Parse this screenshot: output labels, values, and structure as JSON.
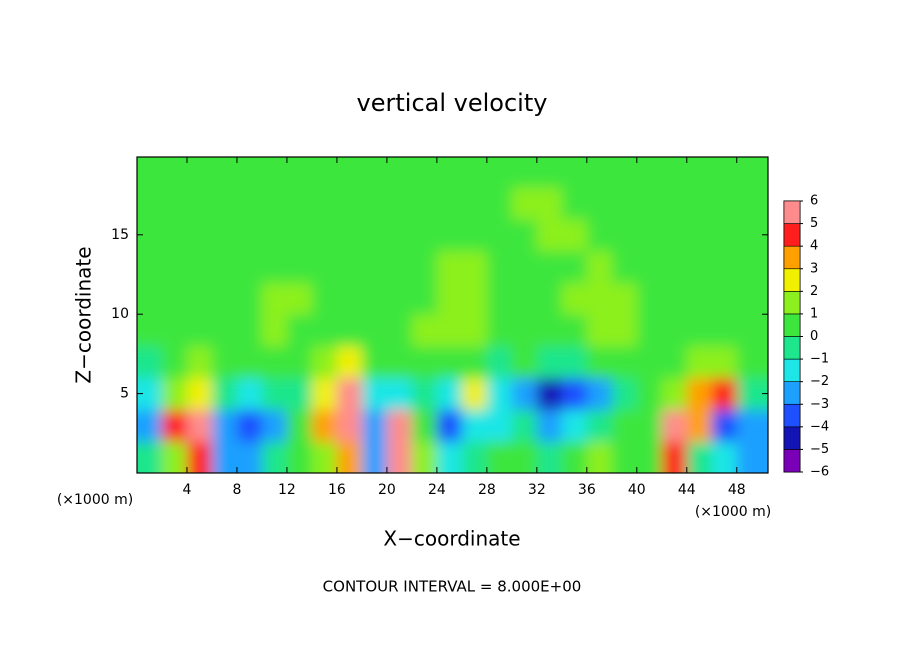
{
  "chart_data": {
    "type": "heatmap",
    "title": "vertical velocity",
    "x_label": "X−coordinate",
    "y_label": "Z−coordinate",
    "x_unit_left": "(×1000 m)",
    "x_unit_right": "(×1000 m)",
    "footer": "CONTOUR INTERVAL = 8.000E+00",
    "xlim": [
      0,
      50.5
    ],
    "ylim": [
      0,
      19.9
    ],
    "xticks": [
      4,
      8,
      12,
      16,
      20,
      24,
      28,
      32,
      36,
      40,
      44,
      48
    ],
    "yticks": [
      5,
      10,
      15
    ],
    "x": [
      1,
      3,
      5,
      7,
      9,
      11,
      13,
      15,
      17,
      19,
      21,
      23,
      25,
      27,
      29,
      31,
      33,
      35,
      37,
      39,
      41,
      43,
      45,
      47,
      49
    ],
    "y": [
      1,
      3,
      5,
      7,
      9,
      11,
      13,
      15,
      17,
      19
    ],
    "z": [
      [
        -1,
        1,
        4,
        -3,
        -3,
        -1,
        0,
        1,
        3,
        -3,
        6,
        1,
        -2,
        -1,
        0,
        0,
        -1,
        0,
        1,
        0,
        0,
        4,
        -1,
        -2,
        -3
      ],
      [
        -3,
        4,
        6,
        -3,
        -4,
        -3,
        0,
        3,
        6,
        -3,
        5,
        0,
        -4,
        -2,
        -2,
        -1,
        -3,
        -2,
        -1,
        0,
        0,
        6,
        3,
        -4,
        -3
      ],
      [
        -2,
        1,
        2,
        -1,
        -2,
        -1,
        -1,
        2,
        6,
        -2,
        -2,
        -1,
        -2,
        2,
        -2,
        -3,
        -5,
        -4,
        -3,
        -1,
        0,
        1,
        3,
        4,
        -1
      ],
      [
        -1,
        0,
        1,
        0,
        0,
        0,
        0,
        1,
        2,
        0,
        0,
        0,
        0,
        0,
        -1,
        0,
        -1,
        -1,
        0,
        0,
        0,
        0,
        1,
        1,
        0
      ],
      [
        0,
        0,
        0,
        0,
        0,
        1,
        0,
        0,
        0,
        0,
        0,
        1,
        1,
        1,
        0,
        0,
        0,
        0,
        1,
        1,
        0,
        0,
        0,
        0,
        0
      ],
      [
        0,
        0,
        0,
        0,
        0,
        1,
        1,
        0,
        0,
        0,
        0,
        0,
        1,
        1,
        0,
        0,
        0,
        1,
        1,
        1,
        0,
        0,
        0,
        0,
        0
      ],
      [
        0,
        0,
        0,
        0,
        0,
        0,
        0,
        0,
        0,
        0,
        0,
        0,
        1,
        1,
        0,
        0,
        0,
        0,
        1,
        0,
        0,
        0,
        0,
        0,
        0
      ],
      [
        0,
        0,
        0,
        0,
        0,
        0,
        0,
        0,
        0,
        0,
        0,
        0,
        0,
        0,
        0,
        0,
        1,
        1,
        0,
        0,
        0,
        0,
        0,
        0,
        0
      ],
      [
        0,
        0,
        0,
        0,
        0,
        0,
        0,
        0,
        0,
        0,
        0,
        0,
        0,
        0,
        0,
        1,
        1,
        0,
        0,
        0,
        0,
        0,
        0,
        0,
        0
      ],
      [
        0,
        0,
        0,
        0,
        0,
        0,
        0,
        0,
        0,
        0,
        0,
        0,
        0,
        0,
        0,
        0,
        0,
        0,
        0,
        0,
        0,
        0,
        0,
        0,
        0
      ]
    ],
    "colorbar": {
      "levels": [
        {
          "value": -6,
          "label": "−6"
        },
        {
          "value": -5,
          "label": "−5"
        },
        {
          "value": -4,
          "label": "−4"
        },
        {
          "value": -3,
          "label": "−3"
        },
        {
          "value": -2,
          "label": "−2"
        },
        {
          "value": -1,
          "label": "−1"
        },
        0,
        1,
        2,
        3,
        4,
        5,
        6
      ],
      "colors": [
        "#7a00b8",
        "#1414b4",
        "#1e50ff",
        "#1ea0ff",
        "#1ee6e6",
        "#1ee68c",
        "#3ce63c",
        "#8cf01e",
        "#f0f000",
        "#ffa000",
        "#ff1e1e",
        "#ff8c8c"
      ]
    }
  }
}
